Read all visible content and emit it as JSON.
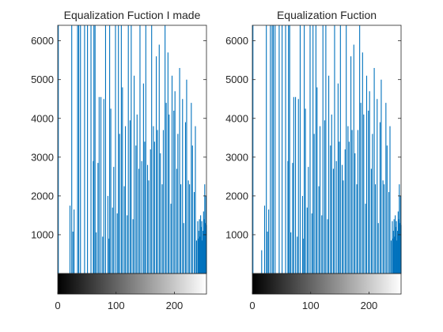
{
  "chart_data": [
    {
      "type": "bar",
      "subtype": "stem-histogram",
      "title": "Equalization Fuction I made",
      "xlabel": "",
      "ylabel": "",
      "xlim": [
        0,
        255
      ],
      "ylim": [
        0,
        6400
      ],
      "xticks": [
        "0",
        "100",
        "200"
      ],
      "yticks": [
        "1000",
        "2000",
        "3000",
        "4000",
        "5000",
        "6000"
      ],
      "colorbar": "grayscale 0-255",
      "bar_color": "#0072BD",
      "x": [
        1,
        21,
        24,
        26,
        28,
        34,
        36,
        39,
        46,
        51,
        57,
        61,
        62,
        64,
        66,
        69,
        71,
        74,
        77,
        79,
        82,
        86,
        88,
        89,
        91,
        94,
        96,
        99,
        102,
        104,
        106,
        109,
        111,
        114,
        116,
        119,
        121,
        124,
        126,
        129,
        131,
        134,
        136,
        139,
        141,
        144,
        147,
        149,
        151,
        154,
        156,
        159,
        161,
        164,
        166,
        169,
        171,
        174,
        176,
        179,
        181,
        184,
        186,
        189,
        191,
        194,
        196,
        199,
        201,
        204,
        206,
        209,
        211,
        214,
        216,
        219,
        221,
        224,
        226,
        229,
        231,
        234,
        236,
        238,
        240,
        241,
        242,
        243,
        244,
        245,
        246,
        247,
        248,
        249,
        250,
        251,
        252,
        253,
        254,
        255
      ],
      "values": [
        6400,
        1750,
        6400,
        1080,
        1650,
        6400,
        6400,
        6400,
        6400,
        6400,
        6400,
        2900,
        6400,
        6400,
        1060,
        2850,
        4550,
        4550,
        950,
        4500,
        6400,
        2000,
        900,
        6400,
        4250,
        1700,
        2750,
        6400,
        1550,
        6400,
        3600,
        6400,
        4800,
        2250,
        3800,
        1500,
        6400,
        3950,
        6400,
        1400,
        5100,
        3300,
        4100,
        2700,
        6400,
        2900,
        4900,
        3400,
        6400,
        2800,
        2400,
        3200,
        6400,
        3800,
        3400,
        5600,
        3700,
        5900,
        3100,
        2300,
        3700,
        6400,
        4400,
        5700,
        4100,
        1800,
        5100,
        4200,
        4700,
        2700,
        3600,
        5300,
        2300,
        4500,
        1300,
        3900,
        5000,
        2400,
        2300,
        4400,
        3300,
        2100,
        3800,
        850,
        1350,
        900,
        1100,
        1400,
        950,
        1500,
        1200,
        1350,
        850,
        1100,
        1600,
        1400,
        2300,
        1300,
        2000,
        1250
      ]
    },
    {
      "type": "bar",
      "subtype": "stem-histogram",
      "title": "Equalization Fuction",
      "xlabel": "",
      "ylabel": "",
      "xlim": [
        0,
        255
      ],
      "ylim": [
        0,
        6400
      ],
      "xticks": [
        "0",
        "100",
        "200"
      ],
      "yticks": [
        "1000",
        "2000",
        "3000",
        "4000",
        "5000",
        "6000"
      ],
      "colorbar": "grayscale 0-255",
      "bar_color": "#0072BD",
      "x": [
        1,
        16,
        21,
        24,
        26,
        28,
        31,
        34,
        36,
        39,
        46,
        51,
        57,
        61,
        62,
        64,
        66,
        69,
        71,
        74,
        77,
        79,
        82,
        86,
        88,
        89,
        91,
        94,
        96,
        99,
        102,
        104,
        106,
        109,
        111,
        114,
        116,
        119,
        121,
        124,
        126,
        129,
        131,
        134,
        136,
        139,
        141,
        144,
        147,
        149,
        151,
        154,
        156,
        159,
        161,
        164,
        166,
        169,
        171,
        174,
        176,
        179,
        181,
        184,
        186,
        189,
        191,
        194,
        196,
        199,
        201,
        204,
        206,
        209,
        211,
        214,
        216,
        219,
        221,
        224,
        226,
        229,
        231,
        234,
        236,
        238,
        240,
        241,
        242,
        243,
        244,
        245,
        246,
        247,
        248,
        249,
        250,
        251,
        252,
        253,
        254,
        255
      ],
      "values": [
        6400,
        600,
        1750,
        6400,
        1080,
        1650,
        6400,
        6400,
        6400,
        6400,
        6400,
        6400,
        6400,
        2900,
        6400,
        6400,
        1060,
        2850,
        4550,
        4550,
        950,
        4500,
        6400,
        2000,
        900,
        6400,
        4250,
        1700,
        2750,
        6400,
        1550,
        6400,
        3600,
        6400,
        4800,
        2250,
        3800,
        1500,
        6400,
        3950,
        6400,
        1400,
        5100,
        3300,
        4100,
        2700,
        6400,
        2900,
        4900,
        3400,
        6400,
        2800,
        2400,
        3200,
        6400,
        3800,
        3400,
        5600,
        3700,
        5900,
        3100,
        2300,
        3700,
        6400,
        4400,
        5700,
        4100,
        1800,
        5100,
        4200,
        4700,
        2700,
        3600,
        5300,
        2300,
        4500,
        1300,
        3900,
        5000,
        2400,
        2300,
        4400,
        3300,
        2100,
        3800,
        850,
        1350,
        900,
        1100,
        1400,
        950,
        1500,
        1200,
        1350,
        850,
        1100,
        1600,
        1400,
        2300,
        1300,
        2000,
        1250
      ]
    }
  ]
}
